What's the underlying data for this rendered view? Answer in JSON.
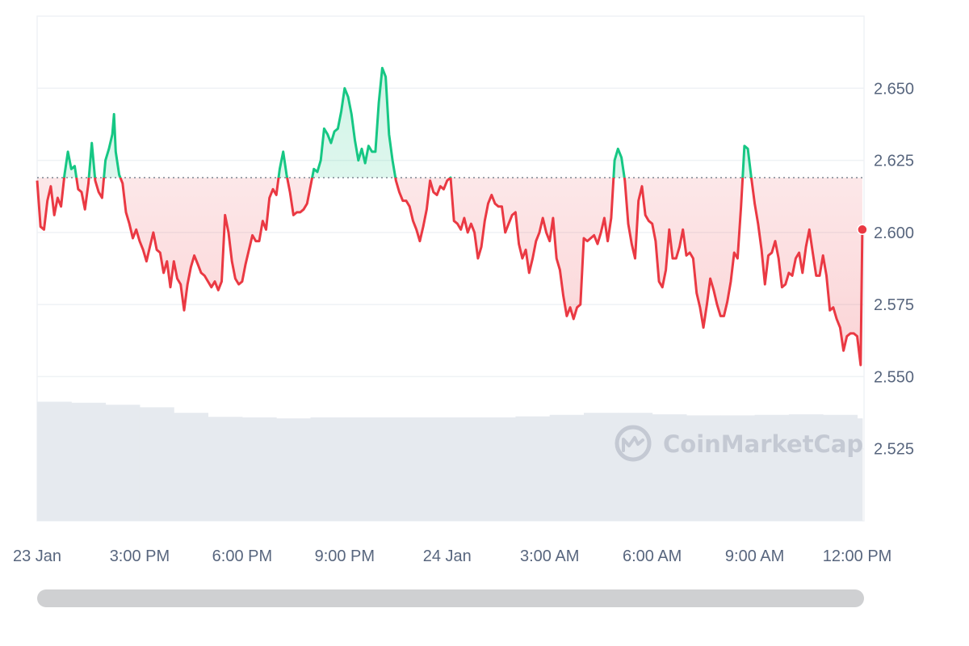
{
  "watermark": {
    "text": "CoinMarketCap"
  },
  "colors": {
    "up": "#16c784",
    "down": "#ea3943",
    "grid": "#eff2f5",
    "volume": "#e6eaef",
    "baseline": "#7d8592"
  },
  "chart_data": {
    "type": "line",
    "baseline": 2.619,
    "ylim": [
      2.5,
      2.675
    ],
    "y_ticks": [
      {
        "value": 2.525,
        "label": "2.525"
      },
      {
        "value": 2.55,
        "label": "2.550"
      },
      {
        "value": 2.575,
        "label": "2.575"
      },
      {
        "value": 2.6,
        "label": "2.600"
      },
      {
        "value": 2.625,
        "label": "2.625"
      },
      {
        "value": 2.65,
        "label": "2.650"
      }
    ],
    "x_range": [
      12,
      36.2
    ],
    "x_ticks": [
      {
        "t": 12,
        "label": "23 Jan"
      },
      {
        "t": 15,
        "label": "3:00 PM"
      },
      {
        "t": 18,
        "label": "6:00 PM"
      },
      {
        "t": 21,
        "label": "9:00 PM"
      },
      {
        "t": 24,
        "label": "24 Jan"
      },
      {
        "t": 27,
        "label": "3:00 AM"
      },
      {
        "t": 30,
        "label": "6:00 AM"
      },
      {
        "t": 33,
        "label": "9:00 AM"
      },
      {
        "t": 36,
        "label": "12:00 PM"
      }
    ],
    "price_series": [
      [
        12.0,
        2.618
      ],
      [
        12.1,
        2.602
      ],
      [
        12.2,
        2.601
      ],
      [
        12.3,
        2.611
      ],
      [
        12.4,
        2.616
      ],
      [
        12.5,
        2.606
      ],
      [
        12.6,
        2.612
      ],
      [
        12.7,
        2.609
      ],
      [
        12.8,
        2.62
      ],
      [
        12.9,
        2.628
      ],
      [
        13.0,
        2.622
      ],
      [
        13.1,
        2.623
      ],
      [
        13.2,
        2.615
      ],
      [
        13.3,
        2.614
      ],
      [
        13.4,
        2.608
      ],
      [
        13.5,
        2.617
      ],
      [
        13.6,
        2.631
      ],
      [
        13.7,
        2.618
      ],
      [
        13.8,
        2.614
      ],
      [
        13.9,
        2.612
      ],
      [
        14.0,
        2.625
      ],
      [
        14.1,
        2.629
      ],
      [
        14.2,
        2.634
      ],
      [
        14.25,
        2.641
      ],
      [
        14.3,
        2.628
      ],
      [
        14.4,
        2.62
      ],
      [
        14.5,
        2.617
      ],
      [
        14.6,
        2.607
      ],
      [
        14.7,
        2.603
      ],
      [
        14.8,
        2.598
      ],
      [
        14.9,
        2.601
      ],
      [
        15.0,
        2.597
      ],
      [
        15.1,
        2.594
      ],
      [
        15.2,
        2.59
      ],
      [
        15.3,
        2.595
      ],
      [
        15.4,
        2.6
      ],
      [
        15.5,
        2.594
      ],
      [
        15.6,
        2.593
      ],
      [
        15.7,
        2.586
      ],
      [
        15.8,
        2.59
      ],
      [
        15.9,
        2.581
      ],
      [
        16.0,
        2.59
      ],
      [
        16.1,
        2.584
      ],
      [
        16.2,
        2.582
      ],
      [
        16.3,
        2.573
      ],
      [
        16.4,
        2.582
      ],
      [
        16.5,
        2.588
      ],
      [
        16.6,
        2.592
      ],
      [
        16.7,
        2.589
      ],
      [
        16.8,
        2.586
      ],
      [
        16.9,
        2.585
      ],
      [
        17.0,
        2.583
      ],
      [
        17.1,
        2.581
      ],
      [
        17.2,
        2.583
      ],
      [
        17.3,
        2.58
      ],
      [
        17.4,
        2.583
      ],
      [
        17.5,
        2.606
      ],
      [
        17.6,
        2.6
      ],
      [
        17.7,
        2.59
      ],
      [
        17.8,
        2.584
      ],
      [
        17.9,
        2.582
      ],
      [
        18.0,
        2.583
      ],
      [
        18.1,
        2.589
      ],
      [
        18.2,
        2.594
      ],
      [
        18.3,
        2.599
      ],
      [
        18.4,
        2.597
      ],
      [
        18.5,
        2.597
      ],
      [
        18.6,
        2.604
      ],
      [
        18.7,
        2.601
      ],
      [
        18.8,
        2.612
      ],
      [
        18.9,
        2.615
      ],
      [
        19.0,
        2.613
      ],
      [
        19.1,
        2.622
      ],
      [
        19.2,
        2.628
      ],
      [
        19.3,
        2.62
      ],
      [
        19.4,
        2.614
      ],
      [
        19.5,
        2.606
      ],
      [
        19.6,
        2.607
      ],
      [
        19.7,
        2.607
      ],
      [
        19.8,
        2.608
      ],
      [
        19.9,
        2.61
      ],
      [
        20.0,
        2.616
      ],
      [
        20.1,
        2.622
      ],
      [
        20.2,
        2.621
      ],
      [
        20.3,
        2.625
      ],
      [
        20.4,
        2.636
      ],
      [
        20.5,
        2.634
      ],
      [
        20.6,
        2.631
      ],
      [
        20.7,
        2.635
      ],
      [
        20.8,
        2.636
      ],
      [
        20.9,
        2.642
      ],
      [
        21.0,
        2.65
      ],
      [
        21.1,
        2.647
      ],
      [
        21.2,
        2.641
      ],
      [
        21.3,
        2.632
      ],
      [
        21.4,
        2.625
      ],
      [
        21.5,
        2.629
      ],
      [
        21.6,
        2.624
      ],
      [
        21.7,
        2.63
      ],
      [
        21.8,
        2.628
      ],
      [
        21.9,
        2.628
      ],
      [
        22.0,
        2.645
      ],
      [
        22.1,
        2.657
      ],
      [
        22.2,
        2.654
      ],
      [
        22.3,
        2.634
      ],
      [
        22.4,
        2.625
      ],
      [
        22.5,
        2.618
      ],
      [
        22.6,
        2.614
      ],
      [
        22.7,
        2.611
      ],
      [
        22.8,
        2.611
      ],
      [
        22.9,
        2.609
      ],
      [
        23.0,
        2.604
      ],
      [
        23.1,
        2.601
      ],
      [
        23.2,
        2.597
      ],
      [
        23.3,
        2.602
      ],
      [
        23.4,
        2.608
      ],
      [
        23.5,
        2.618
      ],
      [
        23.6,
        2.614
      ],
      [
        23.7,
        2.613
      ],
      [
        23.8,
        2.616
      ],
      [
        23.9,
        2.615
      ],
      [
        24.0,
        2.618
      ],
      [
        24.1,
        2.619
      ],
      [
        24.2,
        2.604
      ],
      [
        24.3,
        2.603
      ],
      [
        24.4,
        2.601
      ],
      [
        24.5,
        2.605
      ],
      [
        24.6,
        2.6
      ],
      [
        24.7,
        2.603
      ],
      [
        24.8,
        2.6
      ],
      [
        24.9,
        2.591
      ],
      [
        25.0,
        2.595
      ],
      [
        25.1,
        2.604
      ],
      [
        25.2,
        2.61
      ],
      [
        25.3,
        2.613
      ],
      [
        25.4,
        2.61
      ],
      [
        25.5,
        2.609
      ],
      [
        25.6,
        2.609
      ],
      [
        25.7,
        2.6
      ],
      [
        25.8,
        2.603
      ],
      [
        25.9,
        2.606
      ],
      [
        26.0,
        2.607
      ],
      [
        26.1,
        2.596
      ],
      [
        26.2,
        2.591
      ],
      [
        26.3,
        2.594
      ],
      [
        26.4,
        2.586
      ],
      [
        26.5,
        2.591
      ],
      [
        26.6,
        2.597
      ],
      [
        26.7,
        2.6
      ],
      [
        26.8,
        2.605
      ],
      [
        26.9,
        2.6
      ],
      [
        27.0,
        2.597
      ],
      [
        27.1,
        2.605
      ],
      [
        27.2,
        2.591
      ],
      [
        27.3,
        2.587
      ],
      [
        27.4,
        2.578
      ],
      [
        27.5,
        2.571
      ],
      [
        27.6,
        2.574
      ],
      [
        27.7,
        2.57
      ],
      [
        27.8,
        2.574
      ],
      [
        27.9,
        2.575
      ],
      [
        28.0,
        2.598
      ],
      [
        28.1,
        2.597
      ],
      [
        28.2,
        2.598
      ],
      [
        28.3,
        2.599
      ],
      [
        28.4,
        2.596
      ],
      [
        28.5,
        2.6
      ],
      [
        28.6,
        2.605
      ],
      [
        28.7,
        2.597
      ],
      [
        28.8,
        2.605
      ],
      [
        28.9,
        2.625
      ],
      [
        29.0,
        2.629
      ],
      [
        29.1,
        2.626
      ],
      [
        29.2,
        2.618
      ],
      [
        29.3,
        2.603
      ],
      [
        29.4,
        2.596
      ],
      [
        29.5,
        2.591
      ],
      [
        29.6,
        2.611
      ],
      [
        29.7,
        2.616
      ],
      [
        29.8,
        2.606
      ],
      [
        29.9,
        2.604
      ],
      [
        30.0,
        2.603
      ],
      [
        30.1,
        2.597
      ],
      [
        30.2,
        2.583
      ],
      [
        30.3,
        2.581
      ],
      [
        30.4,
        2.587
      ],
      [
        30.5,
        2.601
      ],
      [
        30.6,
        2.591
      ],
      [
        30.7,
        2.591
      ],
      [
        30.8,
        2.595
      ],
      [
        30.9,
        2.601
      ],
      [
        31.0,
        2.592
      ],
      [
        31.1,
        2.593
      ],
      [
        31.2,
        2.591
      ],
      [
        31.3,
        2.579
      ],
      [
        31.4,
        2.574
      ],
      [
        31.5,
        2.567
      ],
      [
        31.6,
        2.575
      ],
      [
        31.7,
        2.584
      ],
      [
        31.8,
        2.58
      ],
      [
        31.9,
        2.575
      ],
      [
        32.0,
        2.571
      ],
      [
        32.1,
        2.571
      ],
      [
        32.2,
        2.576
      ],
      [
        32.3,
        2.583
      ],
      [
        32.4,
        2.593
      ],
      [
        32.5,
        2.591
      ],
      [
        32.6,
        2.609
      ],
      [
        32.7,
        2.63
      ],
      [
        32.8,
        2.629
      ],
      [
        32.9,
        2.619
      ],
      [
        33.0,
        2.61
      ],
      [
        33.1,
        2.603
      ],
      [
        33.2,
        2.594
      ],
      [
        33.3,
        2.582
      ],
      [
        33.4,
        2.592
      ],
      [
        33.5,
        2.593
      ],
      [
        33.6,
        2.597
      ],
      [
        33.7,
        2.591
      ],
      [
        33.8,
        2.581
      ],
      [
        33.9,
        2.582
      ],
      [
        34.0,
        2.586
      ],
      [
        34.1,
        2.585
      ],
      [
        34.2,
        2.591
      ],
      [
        34.3,
        2.593
      ],
      [
        34.4,
        2.586
      ],
      [
        34.5,
        2.595
      ],
      [
        34.6,
        2.601
      ],
      [
        34.7,
        2.593
      ],
      [
        34.8,
        2.585
      ],
      [
        34.9,
        2.585
      ],
      [
        35.0,
        2.592
      ],
      [
        35.1,
        2.585
      ],
      [
        35.2,
        2.573
      ],
      [
        35.3,
        2.574
      ],
      [
        35.4,
        2.57
      ],
      [
        35.5,
        2.567
      ],
      [
        35.6,
        2.559
      ],
      [
        35.7,
        2.564
      ],
      [
        35.8,
        2.565
      ],
      [
        35.9,
        2.565
      ],
      [
        36.0,
        2.564
      ],
      [
        36.1,
        2.554
      ],
      [
        36.15,
        2.601
      ]
    ],
    "volume_series": [
      [
        12.0,
        0.236
      ],
      [
        13.0,
        0.234
      ],
      [
        14.0,
        0.23
      ],
      [
        15.0,
        0.225
      ],
      [
        16.0,
        0.214
      ],
      [
        17.0,
        0.206
      ],
      [
        18.0,
        0.205
      ],
      [
        19.0,
        0.203
      ],
      [
        20.0,
        0.205
      ],
      [
        21.0,
        0.205
      ],
      [
        22.0,
        0.205
      ],
      [
        23.0,
        0.205
      ],
      [
        24.0,
        0.205
      ],
      [
        25.0,
        0.205
      ],
      [
        26.0,
        0.207
      ],
      [
        27.0,
        0.21
      ],
      [
        28.0,
        0.214
      ],
      [
        29.0,
        0.214
      ],
      [
        30.0,
        0.211
      ],
      [
        31.0,
        0.209
      ],
      [
        32.0,
        0.209
      ],
      [
        33.0,
        0.21
      ],
      [
        34.0,
        0.211
      ],
      [
        35.0,
        0.21
      ],
      [
        36.0,
        0.203
      ],
      [
        36.15,
        0.201
      ]
    ],
    "grid": true,
    "legend": "none"
  }
}
